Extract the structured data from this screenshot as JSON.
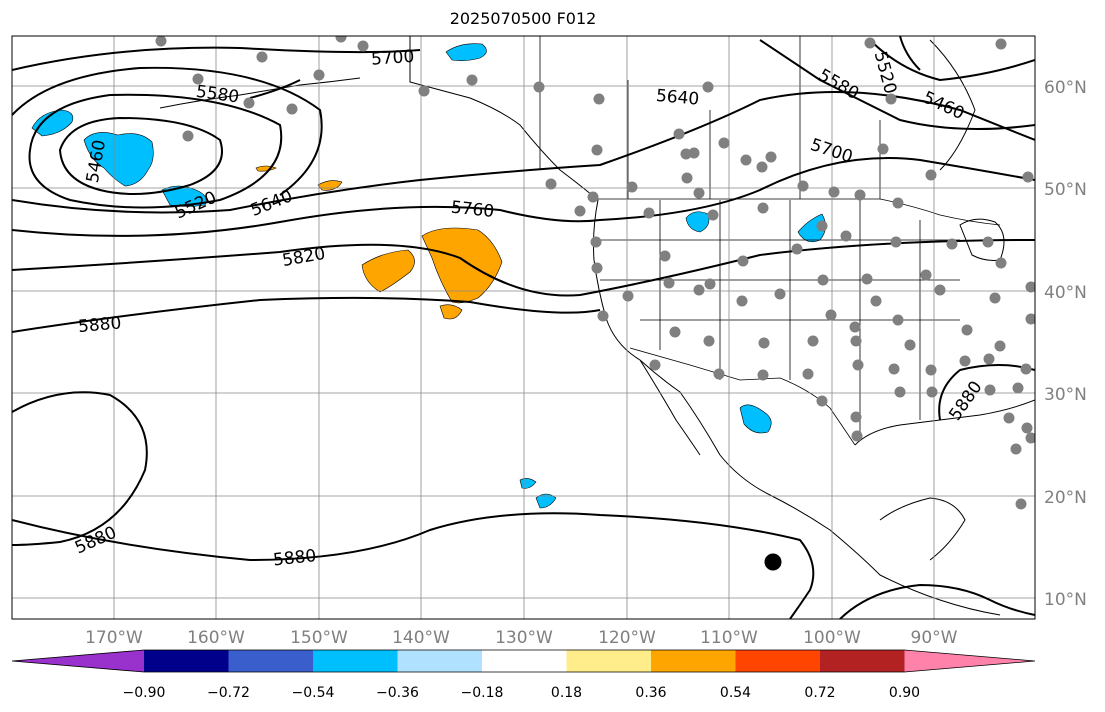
{
  "title": "2025070500 F012",
  "map": {
    "lon_ticks": [
      "170°W",
      "160°W",
      "150°W",
      "140°W",
      "130°W",
      "120°W",
      "110°W",
      "100°W",
      "90°W"
    ],
    "lat_ticks": [
      "60°N",
      "50°N",
      "40°N",
      "30°N",
      "20°N",
      "10°N"
    ],
    "contour_labels": [
      "5700",
      "5580",
      "5640",
      "5460",
      "5520",
      "5640",
      "5760",
      "5820",
      "5880",
      "5880",
      "5880",
      "5580",
      "5460",
      "5520",
      "5700",
      "5880"
    ],
    "anomaly_colors": {
      "negative": "#00bfff",
      "positive": "#ffa500"
    }
  },
  "colorbar": {
    "tick_labels": [
      "−0.90",
      "−0.72",
      "−0.54",
      "−0.36",
      "−0.18",
      "0.18",
      "0.36",
      "0.54",
      "0.72",
      "0.90"
    ],
    "colors": [
      "#9932cc",
      "#00008b",
      "#3a5fcd",
      "#00bfff",
      "#b0e2ff",
      "#ffffff",
      "#ffec8b",
      "#ffa500",
      "#ff4500",
      "#b22222",
      "#ff82ab"
    ]
  }
}
